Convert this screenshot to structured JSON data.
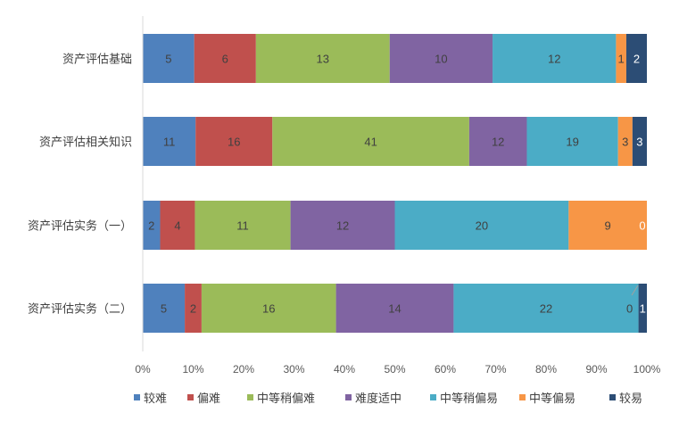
{
  "chart_data": {
    "type": "bar",
    "orientation": "horizontal",
    "stacking": "percent",
    "categories": [
      "资产评估基础",
      "资产评估相关知识",
      "资产评估实务（一）",
      "资产评估实务（二）"
    ],
    "series": [
      {
        "name": "较难",
        "color": "#4f81bd",
        "values": [
          5,
          11,
          2,
          5
        ]
      },
      {
        "name": "偏难",
        "color": "#c0504d",
        "values": [
          6,
          16,
          4,
          2
        ]
      },
      {
        "name": "中等稍偏难",
        "color": "#9bbb59",
        "values": [
          13,
          41,
          11,
          16
        ]
      },
      {
        "name": "难度适中",
        "color": "#8064a2",
        "values": [
          10,
          12,
          12,
          14
        ]
      },
      {
        "name": "中等稍偏易",
        "color": "#4bacc6",
        "values": [
          12,
          19,
          20,
          22
        ]
      },
      {
        "name": "中等偏易",
        "color": "#f79646",
        "values": [
          1,
          3,
          9,
          0
        ]
      },
      {
        "name": "较易",
        "color": "#2c4d75",
        "values": [
          2,
          3,
          0,
          1
        ]
      }
    ],
    "xticks": [
      "0%",
      "10%",
      "20%",
      "30%",
      "40%",
      "50%",
      "60%",
      "70%",
      "80%",
      "90%",
      "100%"
    ],
    "xlim": [
      0,
      100
    ],
    "grid": false,
    "legend": "bottom"
  }
}
